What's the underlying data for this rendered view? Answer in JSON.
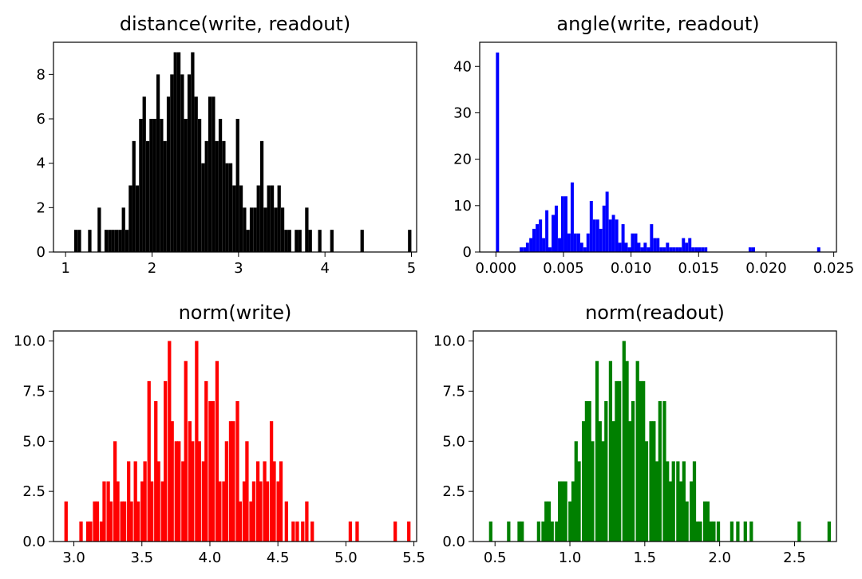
{
  "chart_data": [
    {
      "type": "bar",
      "title": "distance(write, readout)",
      "xlabel": "",
      "ylabel": "",
      "color": "#000000",
      "bar_width": 0.0394,
      "xlim": [
        0.86,
        5.06
      ],
      "ylim": [
        0,
        9.45
      ],
      "xticks": [
        1,
        2,
        3,
        4,
        5
      ],
      "xtick_labels": [
        "1",
        "2",
        "3",
        "4",
        "5"
      ],
      "yticks": [
        0,
        2,
        4,
        6,
        8
      ],
      "ytick_labels": [
        "0",
        "2",
        "4",
        "6",
        "8"
      ],
      "x": [
        1.1,
        1.14,
        1.26,
        1.37,
        1.45,
        1.49,
        1.53,
        1.57,
        1.61,
        1.65,
        1.69,
        1.73,
        1.77,
        1.81,
        1.85,
        1.89,
        1.93,
        1.97,
        2.01,
        2.05,
        2.09,
        2.13,
        2.17,
        2.21,
        2.25,
        2.29,
        2.33,
        2.37,
        2.41,
        2.45,
        2.49,
        2.53,
        2.57,
        2.61,
        2.65,
        2.69,
        2.73,
        2.77,
        2.81,
        2.85,
        2.89,
        2.93,
        2.97,
        3.01,
        3.05,
        3.09,
        3.13,
        3.17,
        3.21,
        3.25,
        3.29,
        3.33,
        3.37,
        3.41,
        3.45,
        3.49,
        3.53,
        3.57,
        3.65,
        3.69,
        3.77,
        3.81,
        3.92,
        4.06,
        4.41,
        4.96
      ],
      "values": [
        1,
        1,
        1,
        2,
        1,
        1,
        1,
        1,
        1,
        2,
        1,
        3,
        5,
        3,
        6,
        7,
        5,
        6,
        6,
        8,
        6,
        5,
        7,
        8,
        9,
        9,
        8,
        6,
        8,
        9,
        7,
        6,
        4,
        5,
        7,
        7,
        5,
        6,
        5,
        4,
        4,
        3,
        6,
        3,
        2,
        1,
        2,
        2,
        3,
        5,
        2,
        3,
        3,
        2,
        3,
        2,
        1,
        1,
        1,
        1,
        2,
        1,
        1,
        1,
        1,
        1
      ]
    },
    {
      "type": "bar",
      "title": "angle(write, readout)",
      "xlabel": "",
      "ylabel": "",
      "color": "#0000ff",
      "bar_width": 0.000235,
      "xlim": [
        -0.0012,
        0.0252
      ],
      "ylim": [
        0,
        45.2
      ],
      "xticks": [
        0,
        0.005,
        0.01,
        0.015,
        0.02,
        0.025
      ],
      "xtick_labels": [
        "0.000",
        "0.005",
        "0.010",
        "0.015",
        "0.020",
        "0.025"
      ],
      "yticks": [
        0,
        10,
        20,
        30,
        40
      ],
      "ytick_labels": [
        "0",
        "10",
        "20",
        "30",
        "40"
      ],
      "x": [
        0.0,
        0.00176,
        0.002,
        0.00222,
        0.00247,
        0.0027,
        0.00294,
        0.00318,
        0.00341,
        0.00365,
        0.00388,
        0.00412,
        0.00435,
        0.00459,
        0.00482,
        0.00506,
        0.00529,
        0.00553,
        0.00576,
        0.006,
        0.00623,
        0.00647,
        0.0067,
        0.00694,
        0.00717,
        0.00741,
        0.00764,
        0.00788,
        0.00811,
        0.00835,
        0.00858,
        0.00882,
        0.00905,
        0.00929,
        0.00952,
        0.00976,
        0.00999,
        0.01023,
        0.01046,
        0.0107,
        0.01093,
        0.01117,
        0.0114,
        0.01164,
        0.01187,
        0.01211,
        0.01234,
        0.01258,
        0.01282,
        0.01305,
        0.01329,
        0.01352,
        0.01376,
        0.01399,
        0.01423,
        0.01446,
        0.0147,
        0.01493,
        0.01517,
        0.01541,
        0.0187,
        0.01894,
        0.02377
      ],
      "values": [
        43,
        1,
        1,
        2,
        3,
        5,
        6,
        7,
        3,
        9,
        1,
        8,
        10,
        3,
        12,
        12,
        4,
        15,
        4,
        4,
        2,
        1,
        4,
        11,
        7,
        7,
        5,
        10,
        13,
        7,
        8,
        7,
        2,
        6,
        2,
        1,
        4,
        4,
        2,
        1,
        2,
        1,
        6,
        3,
        3,
        1,
        1,
        2,
        1,
        1,
        1,
        1,
        3,
        2,
        3,
        1,
        1,
        1,
        1,
        1,
        1,
        1,
        1
      ]
    },
    {
      "type": "bar",
      "title": "norm(write)",
      "xlabel": "",
      "ylabel": "",
      "color": "#ff0000",
      "bar_width": 0.0251,
      "xlim": [
        2.85,
        5.52
      ],
      "ylim": [
        0,
        10.5
      ],
      "xticks": [
        3.0,
        3.5,
        4.0,
        4.5,
        5.0,
        5.5
      ],
      "xtick_labels": [
        "3.0",
        "3.5",
        "4.0",
        "4.5",
        "5.0",
        "5.5"
      ],
      "yticks": [
        0,
        2.5,
        5.0,
        7.5,
        10.0
      ],
      "ytick_labels": [
        "0.0",
        "2.5",
        "5.0",
        "7.5",
        "10.0"
      ],
      "x": [
        2.93,
        3.04,
        3.09,
        3.11,
        3.14,
        3.16,
        3.19,
        3.21,
        3.24,
        3.26,
        3.29,
        3.31,
        3.34,
        3.36,
        3.39,
        3.41,
        3.44,
        3.46,
        3.49,
        3.51,
        3.54,
        3.56,
        3.59,
        3.61,
        3.64,
        3.66,
        3.69,
        3.71,
        3.74,
        3.76,
        3.79,
        3.81,
        3.84,
        3.86,
        3.89,
        3.91,
        3.94,
        3.96,
        3.99,
        4.01,
        4.04,
        4.06,
        4.09,
        4.11,
        4.14,
        4.16,
        4.19,
        4.21,
        4.24,
        4.26,
        4.29,
        4.31,
        4.34,
        4.36,
        4.39,
        4.41,
        4.44,
        4.46,
        4.49,
        4.51,
        4.55,
        4.6,
        4.63,
        4.67,
        4.7,
        4.74,
        5.02,
        5.07,
        5.35,
        5.45
      ],
      "values": [
        2,
        1,
        1,
        1,
        2,
        2,
        1,
        3,
        3,
        2,
        5,
        3,
        2,
        2,
        4,
        2,
        4,
        2,
        3,
        4,
        8,
        3,
        7,
        4,
        3,
        8,
        10,
        6,
        5,
        5,
        4,
        9,
        6,
        5,
        10,
        5,
        4,
        8,
        7,
        7,
        9,
        3,
        3,
        5,
        6,
        6,
        7,
        2,
        3,
        5,
        2,
        3,
        4,
        3,
        4,
        3,
        6,
        4,
        3,
        4,
        2,
        1,
        1,
        1,
        2,
        1,
        1,
        1,
        1,
        1
      ]
    },
    {
      "type": "bar",
      "title": "norm(readout)",
      "xlabel": "",
      "ylabel": "",
      "color": "#008000",
      "bar_width": 0.0226,
      "xlim": [
        0.355,
        2.78
      ],
      "ylim": [
        0,
        10.5
      ],
      "xticks": [
        0.5,
        1.0,
        1.5,
        2.0,
        2.5
      ],
      "xtick_labels": [
        "0.5",
        "1.0",
        "1.5",
        "2.0",
        "2.5"
      ],
      "yticks": [
        0,
        2.5,
        5.0,
        7.5,
        10.0
      ],
      "ytick_labels": [
        "0.0",
        "2.5",
        "5.0",
        "7.5",
        "10.0"
      ],
      "x": [
        0.46,
        0.58,
        0.65,
        0.67,
        0.78,
        0.81,
        0.83,
        0.85,
        0.87,
        0.9,
        0.92,
        0.94,
        0.96,
        0.99,
        1.01,
        1.03,
        1.05,
        1.08,
        1.1,
        1.12,
        1.14,
        1.17,
        1.19,
        1.21,
        1.23,
        1.26,
        1.28,
        1.3,
        1.32,
        1.35,
        1.37,
        1.39,
        1.41,
        1.44,
        1.46,
        1.48,
        1.5,
        1.53,
        1.55,
        1.57,
        1.59,
        1.62,
        1.64,
        1.66,
        1.68,
        1.71,
        1.73,
        1.75,
        1.77,
        1.8,
        1.82,
        1.84,
        1.86,
        1.89,
        1.91,
        1.93,
        1.95,
        1.98,
        2.07,
        2.11,
        2.16,
        2.2,
        2.52,
        2.72
      ],
      "values": [
        1,
        1,
        1,
        1,
        1,
        1,
        2,
        2,
        1,
        1,
        3,
        3,
        3,
        2,
        3,
        5,
        4,
        6,
        7,
        7,
        5,
        9,
        6,
        5,
        7,
        9,
        6,
        8,
        8,
        10,
        9,
        6,
        7,
        9,
        8,
        8,
        5,
        6,
        6,
        4,
        7,
        7,
        4,
        3,
        4,
        4,
        3,
        4,
        2,
        3,
        4,
        1,
        1,
        2,
        2,
        1,
        1,
        1,
        1,
        1,
        1,
        1,
        1,
        1
      ]
    }
  ]
}
